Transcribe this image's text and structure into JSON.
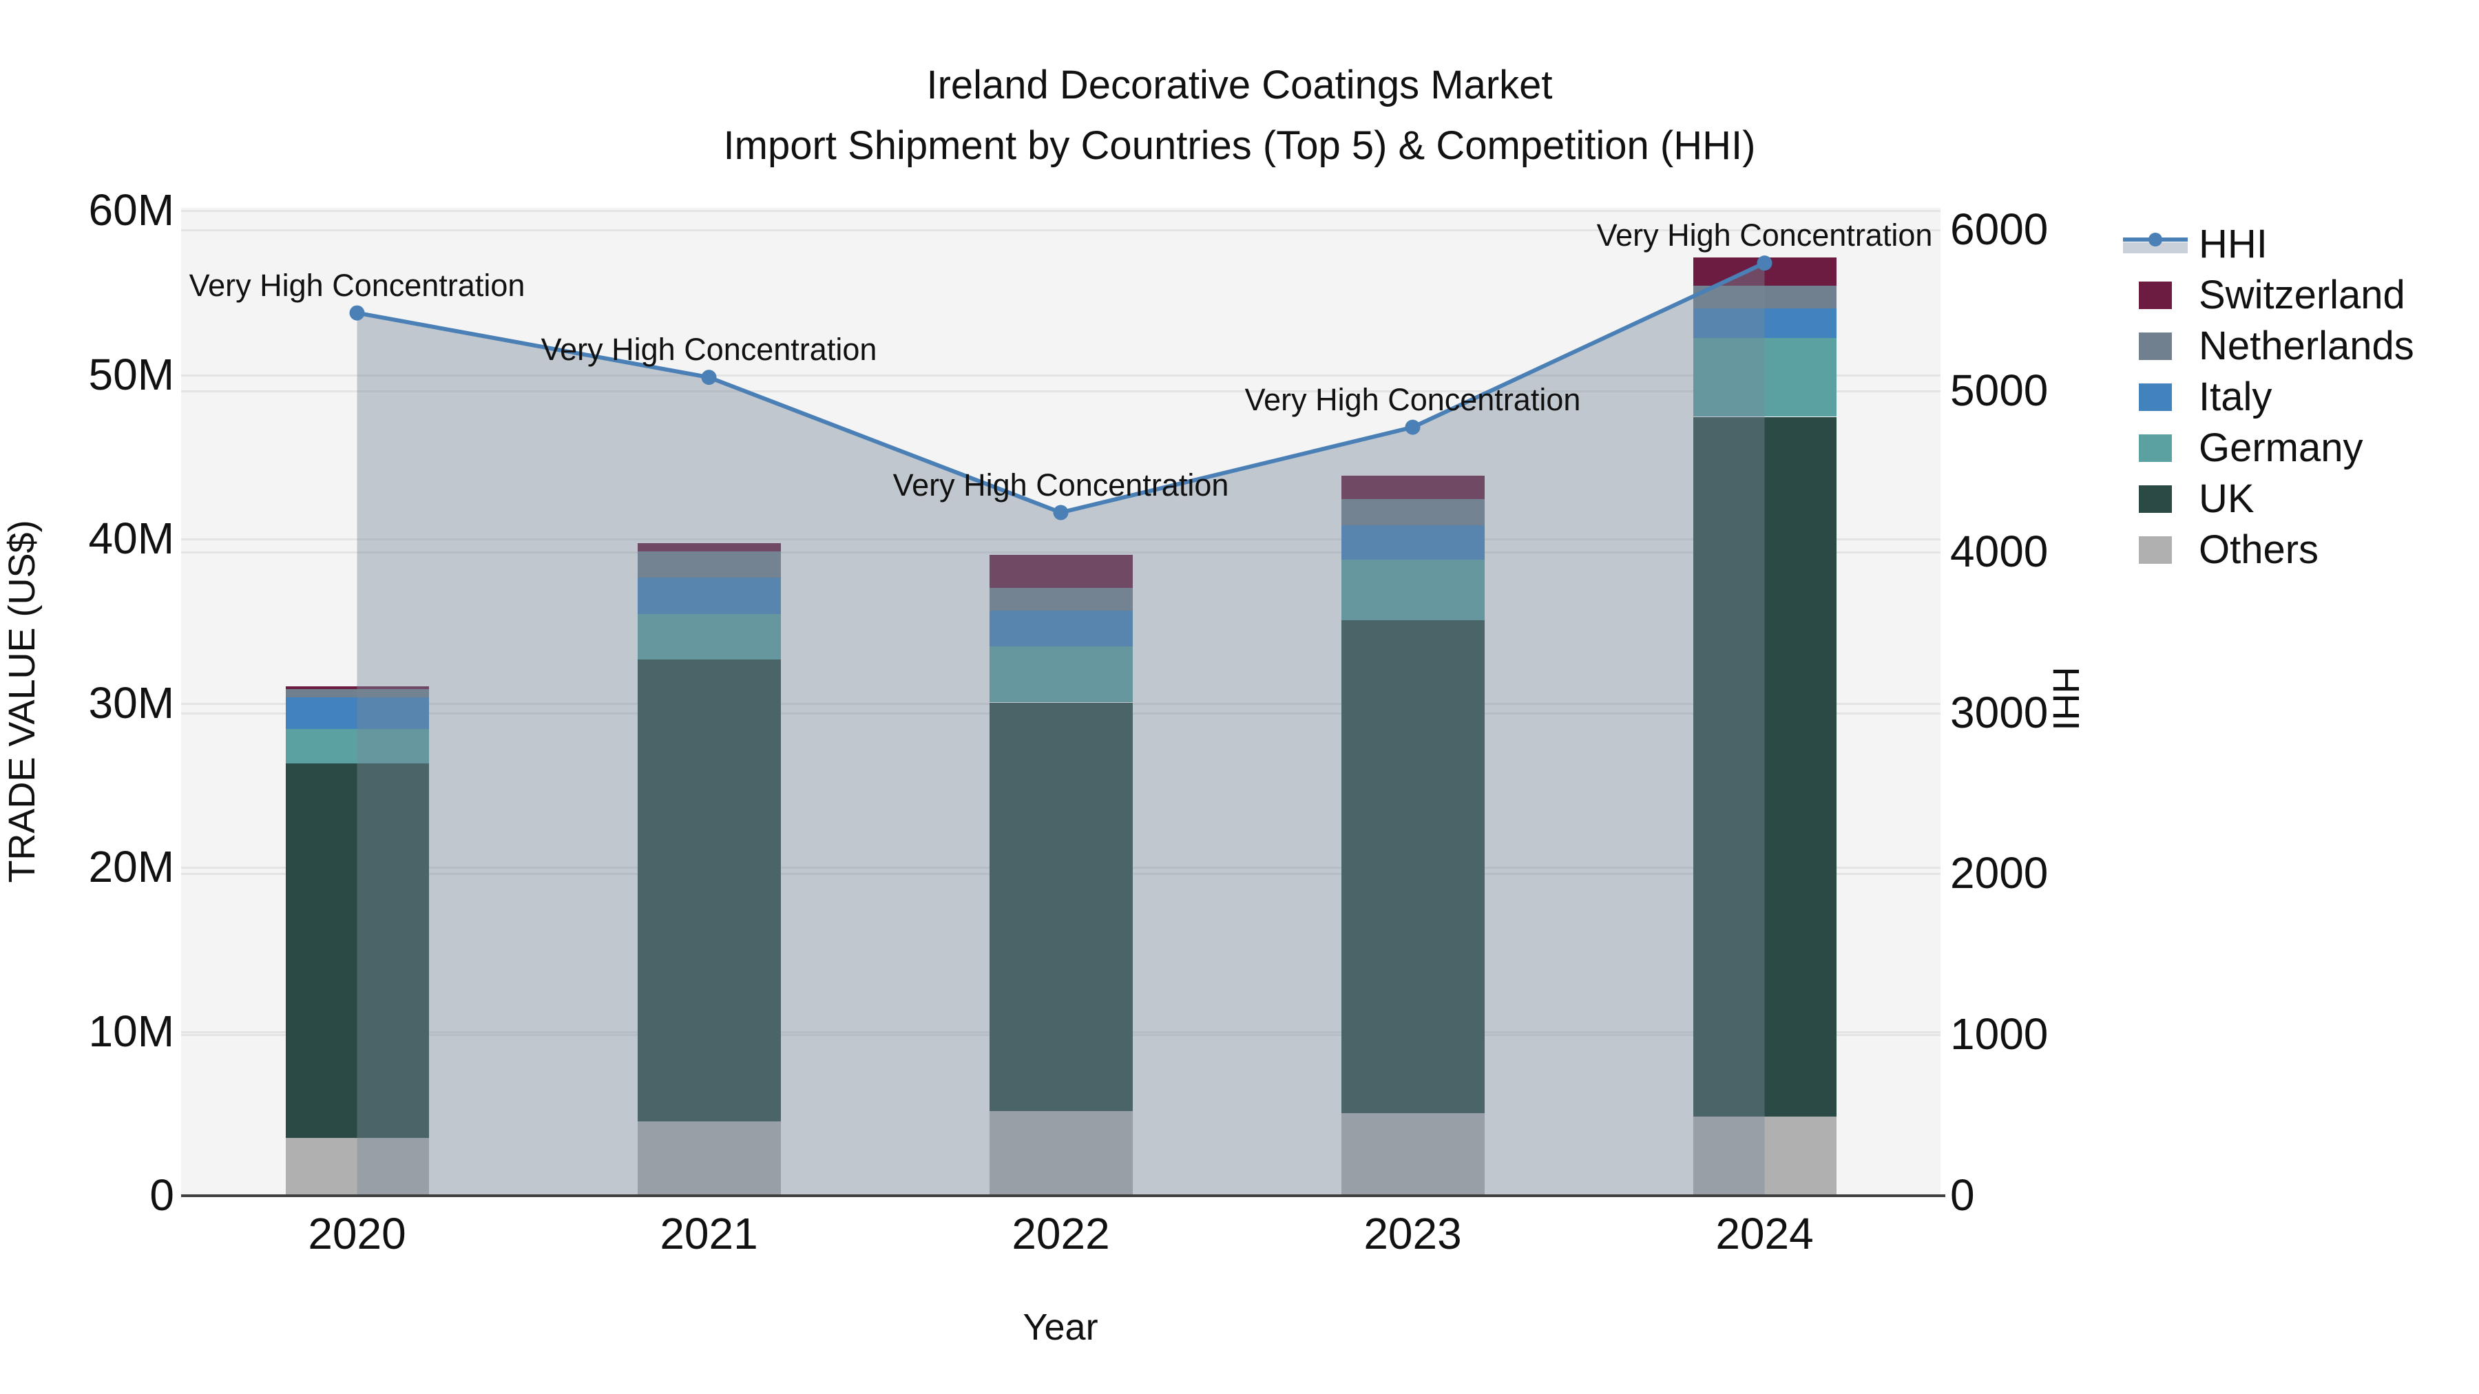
{
  "title": {
    "line1": "Ireland Decorative Coatings Market",
    "line2": "Import Shipment by Countries (Top 5) & Competition (HHI)"
  },
  "axes": {
    "left": {
      "title": "TRADE VALUE (US$)",
      "ticks": [
        {
          "label": "0",
          "value": 0
        },
        {
          "label": "10M",
          "value": 10
        },
        {
          "label": "20M",
          "value": 20
        },
        {
          "label": "30M",
          "value": 30
        },
        {
          "label": "40M",
          "value": 40
        },
        {
          "label": "50M",
          "value": 50
        },
        {
          "label": "60M",
          "value": 60
        }
      ]
    },
    "right": {
      "title": "HHI",
      "ticks": [
        {
          "label": "0",
          "value": 0
        },
        {
          "label": "1000",
          "value": 1000
        },
        {
          "label": "2000",
          "value": 2000
        },
        {
          "label": "3000",
          "value": 3000
        },
        {
          "label": "4000",
          "value": 4000
        },
        {
          "label": "5000",
          "value": 5000
        },
        {
          "label": "6000",
          "value": 6000
        }
      ]
    },
    "x": {
      "title": "Year",
      "categories": [
        "2020",
        "2021",
        "2022",
        "2023",
        "2024"
      ]
    }
  },
  "colors": {
    "switzerland": "#6b1c40",
    "netherlands": "#71808e",
    "italy": "#4383bd",
    "germany": "#5ba1a2",
    "uk": "#2c4a45",
    "others": "#b0b0b0",
    "hhi_line": "#4a80b5",
    "hhi_area_fill": "rgba(119,136,153,0.42)",
    "plot_background": "#f4f4f4",
    "gridline": "#e4e4e4"
  },
  "legend": {
    "items": [
      {
        "label": "HHI",
        "type": "line",
        "color": "#4a80b5"
      },
      {
        "label": "Switzerland",
        "type": "swatch",
        "color": "#6b1c40"
      },
      {
        "label": "Netherlands",
        "type": "swatch",
        "color": "#71808e"
      },
      {
        "label": "Italy",
        "type": "swatch",
        "color": "#4383bd"
      },
      {
        "label": "Germany",
        "type": "swatch",
        "color": "#5ba1a2"
      },
      {
        "label": "UK",
        "type": "swatch",
        "color": "#2c4a45"
      },
      {
        "label": "Others",
        "type": "swatch",
        "color": "#b0b0b0"
      }
    ]
  },
  "chart_data": {
    "type": "combo",
    "subtypes": [
      "stacked-bar",
      "line-with-area"
    ],
    "categories": [
      "2020",
      "2021",
      "2022",
      "2023",
      "2024"
    ],
    "bar_value_units": "million US$",
    "bar_stack_order_bottom_to_top": [
      "Others",
      "UK",
      "Germany",
      "Italy",
      "Netherlands",
      "Switzerland"
    ],
    "series": [
      {
        "name": "Others",
        "type": "bar",
        "color": "#b0b0b0",
        "values": [
          3.5,
          4.5,
          5.1,
          5.0,
          4.8
        ]
      },
      {
        "name": "UK",
        "type": "bar",
        "color": "#2c4a45",
        "values": [
          22.8,
          28.1,
          24.9,
          30.0,
          42.6
        ]
      },
      {
        "name": "Germany",
        "type": "bar",
        "color": "#5ba1a2",
        "values": [
          2.1,
          2.8,
          3.4,
          3.7,
          4.8
        ]
      },
      {
        "name": "Italy",
        "type": "bar",
        "color": "#4383bd",
        "values": [
          1.9,
          2.2,
          2.2,
          2.1,
          1.8
        ]
      },
      {
        "name": "Netherlands",
        "type": "bar",
        "color": "#71808e",
        "values": [
          0.5,
          1.6,
          1.4,
          1.6,
          1.4
        ]
      },
      {
        "name": "Switzerland",
        "type": "bar",
        "color": "#6b1c40",
        "values": [
          0.2,
          0.5,
          2.0,
          1.4,
          1.7
        ]
      }
    ],
    "bar_totals": [
      31.0,
      39.7,
      39.0,
      43.8,
      57.1
    ],
    "line_series": {
      "name": "HHI",
      "axis": "right",
      "color": "#4a80b5",
      "area_fill": "rgba(119,136,153,0.42)",
      "values": [
        5480,
        5080,
        4240,
        4770,
        5790
      ]
    },
    "annotations": [
      {
        "category": "2020",
        "text": "Very High Concentration"
      },
      {
        "category": "2021",
        "text": "Very High Concentration"
      },
      {
        "category": "2022",
        "text": "Very High Concentration"
      },
      {
        "category": "2023",
        "text": "Very High Concentration"
      },
      {
        "category": "2024",
        "text": "Very High Concentration"
      }
    ],
    "ylim_left": [
      0,
      60
    ],
    "ylim_right": [
      0,
      6000
    ],
    "grid": true,
    "legend_position": "right"
  }
}
